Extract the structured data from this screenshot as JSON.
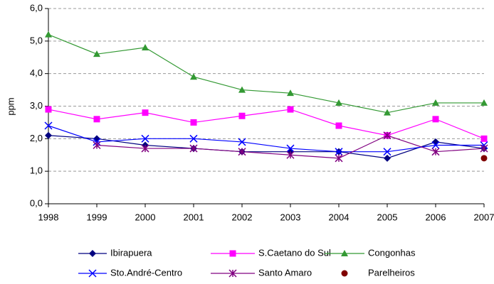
{
  "chart_data": {
    "type": "line",
    "y_label": "ppm",
    "x": [
      1998,
      1999,
      2000,
      2001,
      2002,
      2003,
      2004,
      2005,
      2006,
      2007
    ],
    "xlim": [
      1998,
      2007
    ],
    "xticks": [
      1998,
      1999,
      2000,
      2001,
      2002,
      2003,
      2004,
      2005,
      2006,
      2007
    ],
    "ylim": [
      0,
      6
    ],
    "yticks": [
      {
        "value": 0,
        "label": "0,0"
      },
      {
        "value": 1,
        "label": "1,0"
      },
      {
        "value": 2,
        "label": "2,0"
      },
      {
        "value": 3,
        "label": "3,0"
      },
      {
        "value": 4,
        "label": "4,0"
      },
      {
        "value": 5,
        "label": "5,0"
      },
      {
        "value": 6,
        "label": "6,0"
      }
    ],
    "grid": true,
    "legend": "bottom",
    "series": [
      {
        "name": "Ibirapuera",
        "color": "#000080",
        "marker": "diamond",
        "values": [
          2.1,
          2.0,
          1.8,
          1.7,
          1.6,
          1.6,
          1.6,
          1.4,
          1.9,
          1.7
        ]
      },
      {
        "name": "S.Caetano do Sul",
        "color": "#ff00ff",
        "marker": "square",
        "values": [
          2.9,
          2.6,
          2.8,
          2.5,
          2.7,
          2.9,
          2.4,
          2.1,
          2.6,
          2.0
        ]
      },
      {
        "name": "Congonhas",
        "color": "#339933",
        "marker": "triangle",
        "values": [
          5.2,
          4.6,
          4.8,
          3.9,
          3.5,
          3.4,
          3.1,
          2.8,
          3.1,
          3.1
        ]
      },
      {
        "name": "Sto.André-Centro",
        "color": "#0000ff",
        "marker": "x",
        "values": [
          2.4,
          1.9,
          2.0,
          2.0,
          1.9,
          1.7,
          1.6,
          1.6,
          1.8,
          1.8
        ]
      },
      {
        "name": "Santo Amaro",
        "color": "#800080",
        "marker": "star",
        "values": [
          null,
          1.8,
          1.7,
          1.7,
          1.6,
          1.5,
          1.4,
          2.1,
          1.6,
          1.7
        ]
      },
      {
        "name": "Parelheiros",
        "color": "#800000",
        "marker": "circle",
        "values": [
          null,
          null,
          null,
          null,
          null,
          null,
          null,
          null,
          null,
          1.4
        ]
      }
    ]
  }
}
